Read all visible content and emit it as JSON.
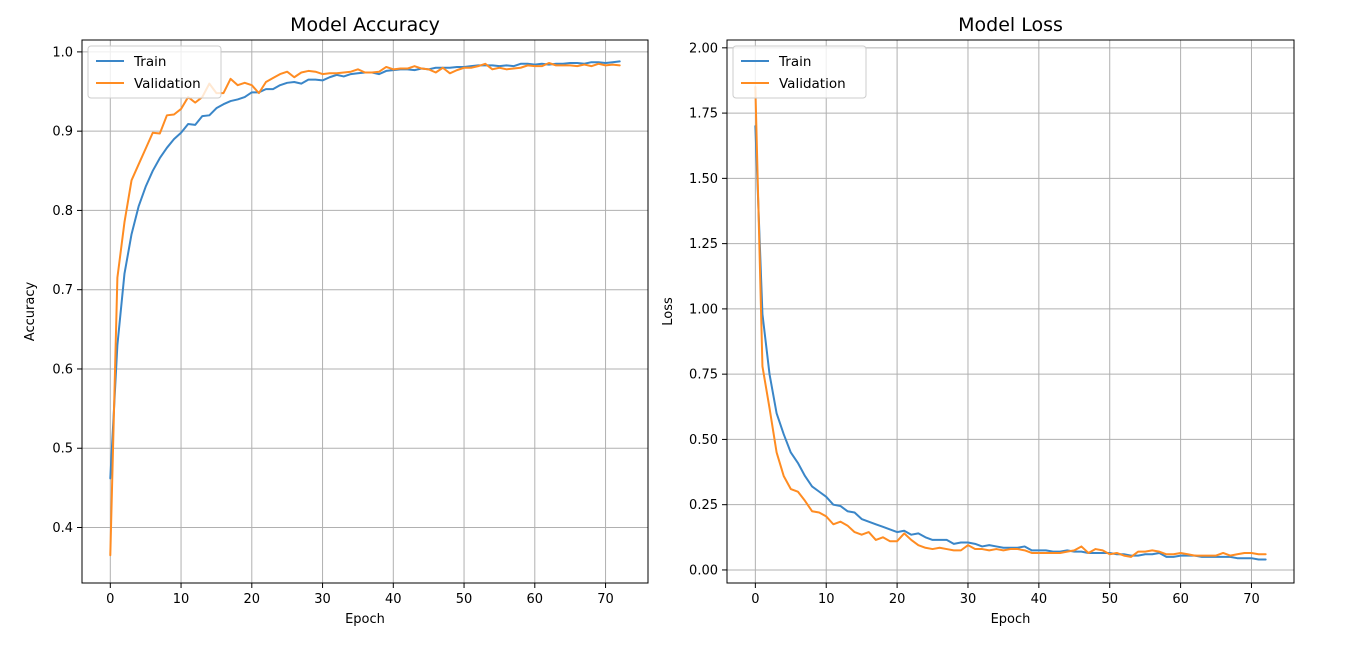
{
  "colors": {
    "train": "#3a86c8",
    "validation": "#ff8c22",
    "grid": "#b0b0b0"
  },
  "chart_data": [
    {
      "type": "line",
      "title": "Model Accuracy",
      "xlabel": "Epoch",
      "ylabel": "Accuracy",
      "xlim": [
        -4,
        76
      ],
      "ylim": [
        0.33,
        1.015
      ],
      "xticks": [
        0,
        10,
        20,
        30,
        40,
        50,
        60,
        70
      ],
      "yticks": [
        0.4,
        0.5,
        0.6,
        0.7,
        0.8,
        0.9,
        1.0
      ],
      "yticklabels": [
        "0.4",
        "0.5",
        "0.6",
        "0.7",
        "0.8",
        "0.9",
        "1.0"
      ],
      "grid": true,
      "legend": "upper left",
      "series": [
        {
          "name": "Train",
          "color": "#3a86c8",
          "values": [
            0.462,
            0.63,
            0.72,
            0.77,
            0.805,
            0.83,
            0.85,
            0.866,
            0.879,
            0.89,
            0.898,
            0.909,
            0.908,
            0.919,
            0.92,
            0.929,
            0.934,
            0.938,
            0.94,
            0.943,
            0.949,
            0.949,
            0.953,
            0.953,
            0.958,
            0.961,
            0.962,
            0.96,
            0.965,
            0.965,
            0.964,
            0.968,
            0.971,
            0.969,
            0.972,
            0.973,
            0.974,
            0.974,
            0.972,
            0.976,
            0.977,
            0.978,
            0.978,
            0.977,
            0.979,
            0.978,
            0.98,
            0.98,
            0.98,
            0.981,
            0.981,
            0.982,
            0.983,
            0.983,
            0.983,
            0.982,
            0.983,
            0.982,
            0.985,
            0.985,
            0.984,
            0.985,
            0.984,
            0.985,
            0.985,
            0.986,
            0.986,
            0.985,
            0.987,
            0.987,
            0.986,
            0.987,
            0.988
          ]
        },
        {
          "name": "Validation",
          "color": "#ff8c22",
          "values": [
            0.365,
            0.715,
            0.785,
            0.838,
            0.858,
            0.878,
            0.898,
            0.897,
            0.92,
            0.921,
            0.928,
            0.943,
            0.936,
            0.943,
            0.96,
            0.948,
            0.948,
            0.966,
            0.958,
            0.961,
            0.958,
            0.948,
            0.962,
            0.967,
            0.972,
            0.975,
            0.968,
            0.974,
            0.976,
            0.975,
            0.972,
            0.973,
            0.973,
            0.974,
            0.975,
            0.978,
            0.974,
            0.974,
            0.975,
            0.981,
            0.978,
            0.979,
            0.979,
            0.982,
            0.979,
            0.978,
            0.974,
            0.98,
            0.973,
            0.977,
            0.98,
            0.98,
            0.982,
            0.985,
            0.978,
            0.98,
            0.978,
            0.979,
            0.98,
            0.983,
            0.982,
            0.982,
            0.986,
            0.983,
            0.983,
            0.983,
            0.982,
            0.984,
            0.982,
            0.985,
            0.983,
            0.984,
            0.983
          ]
        }
      ]
    },
    {
      "type": "line",
      "title": "Model Loss",
      "xlabel": "Epoch",
      "ylabel": "Loss",
      "xlim": [
        -4,
        76
      ],
      "ylim": [
        -0.05,
        2.03
      ],
      "xticks": [
        0,
        10,
        20,
        30,
        40,
        50,
        60,
        70
      ],
      "yticks": [
        0.0,
        0.25,
        0.5,
        0.75,
        1.0,
        1.25,
        1.5,
        1.75,
        2.0
      ],
      "yticklabels": [
        "0.00",
        "0.25",
        "0.50",
        "0.75",
        "1.00",
        "1.25",
        "1.50",
        "1.75",
        "2.00"
      ],
      "grid": true,
      "legend": "upper left",
      "series": [
        {
          "name": "Train",
          "color": "#3a86c8",
          "values": [
            1.7,
            0.98,
            0.75,
            0.6,
            0.52,
            0.45,
            0.41,
            0.36,
            0.32,
            0.3,
            0.28,
            0.25,
            0.245,
            0.225,
            0.22,
            0.195,
            0.185,
            0.175,
            0.165,
            0.155,
            0.145,
            0.15,
            0.135,
            0.14,
            0.125,
            0.115,
            0.115,
            0.115,
            0.1,
            0.105,
            0.105,
            0.1,
            0.09,
            0.095,
            0.09,
            0.085,
            0.085,
            0.085,
            0.09,
            0.075,
            0.075,
            0.075,
            0.07,
            0.07,
            0.075,
            0.07,
            0.07,
            0.065,
            0.065,
            0.065,
            0.065,
            0.06,
            0.06,
            0.055,
            0.055,
            0.06,
            0.06,
            0.065,
            0.05,
            0.05,
            0.055,
            0.055,
            0.055,
            0.05,
            0.05,
            0.05,
            0.05,
            0.05,
            0.045,
            0.045,
            0.045,
            0.04,
            0.04
          ]
        },
        {
          "name": "Validation",
          "color": "#ff8c22",
          "values": [
            1.85,
            0.78,
            0.62,
            0.45,
            0.36,
            0.31,
            0.3,
            0.265,
            0.225,
            0.22,
            0.205,
            0.175,
            0.185,
            0.17,
            0.145,
            0.135,
            0.145,
            0.115,
            0.125,
            0.11,
            0.11,
            0.14,
            0.115,
            0.095,
            0.085,
            0.08,
            0.085,
            0.08,
            0.075,
            0.075,
            0.095,
            0.08,
            0.08,
            0.075,
            0.08,
            0.075,
            0.08,
            0.08,
            0.075,
            0.065,
            0.065,
            0.065,
            0.065,
            0.065,
            0.07,
            0.075,
            0.09,
            0.065,
            0.08,
            0.075,
            0.06,
            0.065,
            0.055,
            0.05,
            0.07,
            0.07,
            0.075,
            0.07,
            0.06,
            0.06,
            0.065,
            0.06,
            0.055,
            0.055,
            0.055,
            0.055,
            0.065,
            0.055,
            0.06,
            0.065,
            0.065,
            0.06,
            0.06
          ]
        }
      ]
    }
  ]
}
